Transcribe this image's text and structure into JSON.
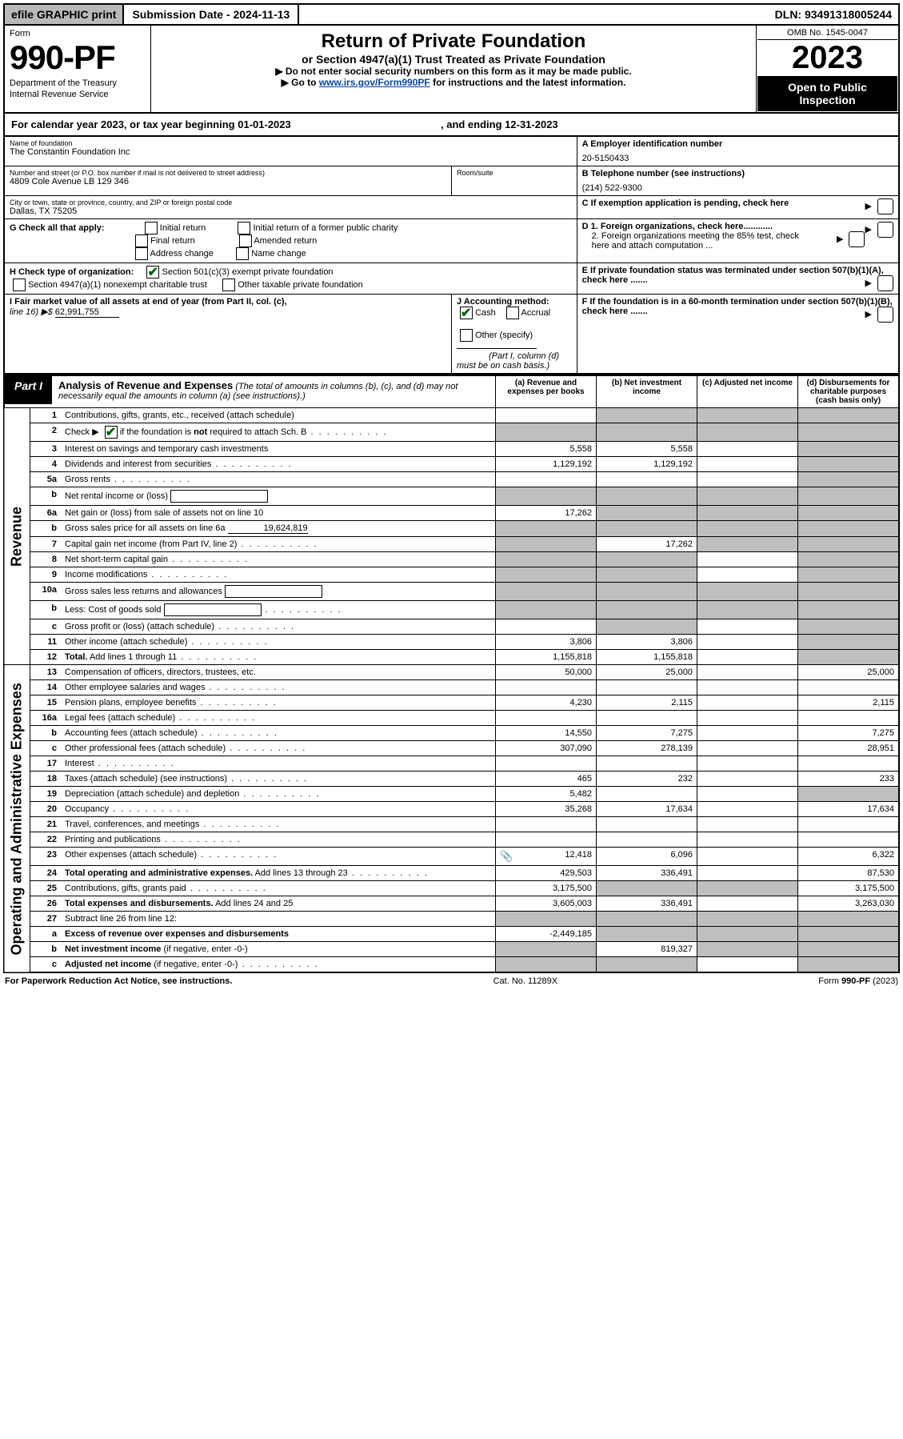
{
  "topbar": {
    "efile": "efile GRAPHIC print",
    "subdate": "Submission Date - 2024-11-13",
    "dln": "DLN: 93491318005244"
  },
  "head": {
    "form_word": "Form",
    "form_num": "990-PF",
    "dept": "Department of the Treasury",
    "irs": "Internal Revenue Service",
    "title": "Return of Private Foundation",
    "subtitle": "or Section 4947(a)(1) Trust Treated as Private Foundation",
    "instr1": "▶ Do not enter social security numbers on this form as it may be made public.",
    "instr2_pre": "▶ Go to ",
    "instr2_link": "www.irs.gov/Form990PF",
    "instr2_post": " for instructions and the latest information.",
    "omb": "OMB No. 1545-0047",
    "year": "2023",
    "open": "Open to Public Inspection"
  },
  "cal": {
    "label_pre": "For calendar year 2023, or tax year beginning ",
    "begin": "01-01-2023",
    "label_mid": " , and ending ",
    "end": "12-31-2023"
  },
  "info": {
    "name_label": "Name of foundation",
    "name": "The Constantin Foundation Inc",
    "addr_label": "Number and street (or P.O. box number if mail is not delivered to street address)",
    "addr": "4809 Cole Avenue LB 129 346",
    "room_label": "Room/suite",
    "city_label": "City or town, state or province, country, and ZIP or foreign postal code",
    "city": "Dallas, TX  75205",
    "a_label": "A Employer identification number",
    "a_val": "20-5150433",
    "b_label": "B Telephone number (see instructions)",
    "b_val": "(214) 522-9300",
    "c_label": "C If exemption application is pending, check here",
    "g_label": "G Check all that apply:",
    "g_opts": [
      "Initial return",
      "Initial return of a former public charity",
      "Final return",
      "Amended return",
      "Address change",
      "Name change"
    ],
    "d1": "D 1. Foreign organizations, check here............",
    "d2": "2. Foreign organizations meeting the 85% test, check here and attach computation ...",
    "h_label": "H Check type of organization:",
    "h1": "Section 501(c)(3) exempt private foundation",
    "h2": "Section 4947(a)(1) nonexempt charitable trust",
    "h3": "Other taxable private foundation",
    "e_label": "E  If private foundation status was terminated under section 507(b)(1)(A), check here .......",
    "i_label_1": "I Fair market value of all assets at end of year (from Part II, col. (c),",
    "i_label_2": "line 16) ▶$ ",
    "i_val": "62,991,755",
    "j_label": "J Accounting method:",
    "j_cash": "Cash",
    "j_accrual": "Accrual",
    "j_other": "Other (specify)",
    "j_note": "(Part I, column (d) must be on cash basis.)",
    "f_label": "F  If the foundation is in a 60-month termination under section 507(b)(1)(B), check here .......",
    "part1": "Part I",
    "analysis_title": "Analysis of Revenue and Expenses",
    "analysis_note": " (The total of amounts in columns (b), (c), and (d) may not necessarily equal the amounts in column (a) (see instructions).)",
    "col_a": "(a)  Revenue and expenses per books",
    "col_b": "(b)  Net investment income",
    "col_c": "(c)  Adjusted net income",
    "col_d": "(d)  Disbursements for charitable purposes (cash basis only)"
  },
  "sides": {
    "rev": "Revenue",
    "exp": "Operating and Administrative Expenses"
  },
  "rows": [
    {
      "n": "1",
      "desc": "Contributions, gifts, grants, etc., received (attach schedule)",
      "a": "",
      "b": "",
      "c": "",
      "d": "",
      "shade_b": true,
      "shade_c": true,
      "shade_d": true
    },
    {
      "n": "2",
      "desc": "Check ▶ ☑ if the foundation is <b>not</b> required to attach Sch. B",
      "a": "",
      "b": "",
      "c": "",
      "d": "",
      "dots": true,
      "shade_a": true,
      "shade_b": true,
      "shade_c": true,
      "shade_d": true,
      "has_check": true
    },
    {
      "n": "3",
      "desc": "Interest on savings and temporary cash investments",
      "a": "5,558",
      "b": "5,558",
      "c": "",
      "d": "",
      "shade_d": true
    },
    {
      "n": "4",
      "desc": "Dividends and interest from securities",
      "a": "1,129,192",
      "b": "1,129,192",
      "c": "",
      "d": "",
      "dots": true,
      "shade_d": true
    },
    {
      "n": "5a",
      "desc": "Gross rents",
      "a": "",
      "b": "",
      "c": "",
      "d": "",
      "dots": true,
      "shade_d": true
    },
    {
      "n": "b",
      "desc": "Net rental income or (loss)",
      "a": "",
      "b": "",
      "c": "",
      "d": "",
      "shade_a": true,
      "shade_b": true,
      "shade_c": true,
      "shade_d": true,
      "inline_box": true
    },
    {
      "n": "6a",
      "desc": "Net gain or (loss) from sale of assets not on line 10",
      "a": "17,262",
      "b": "",
      "c": "",
      "d": "",
      "shade_b": true,
      "shade_c": true,
      "shade_d": true
    },
    {
      "n": "b",
      "desc": "Gross sales price for all assets on line 6a",
      "a": "",
      "b": "",
      "c": "",
      "d": "",
      "shade_a": true,
      "shade_b": true,
      "shade_c": true,
      "shade_d": true,
      "inline_val": "19,624,819"
    },
    {
      "n": "7",
      "desc": "Capital gain net income (from Part IV, line 2)",
      "a": "",
      "b": "17,262",
      "c": "",
      "d": "",
      "dots": true,
      "shade_a": true,
      "shade_c": true,
      "shade_d": true
    },
    {
      "n": "8",
      "desc": "Net short-term capital gain",
      "a": "",
      "b": "",
      "c": "",
      "d": "",
      "dots": true,
      "shade_a": true,
      "shade_b": true,
      "shade_d": true
    },
    {
      "n": "9",
      "desc": "Income modifications",
      "a": "",
      "b": "",
      "c": "",
      "d": "",
      "dots": true,
      "shade_a": true,
      "shade_b": true,
      "shade_d": true
    },
    {
      "n": "10a",
      "desc": "Gross sales less returns and allowances",
      "a": "",
      "b": "",
      "c": "",
      "d": "",
      "shade_a": true,
      "shade_b": true,
      "shade_c": true,
      "shade_d": true,
      "inline_box": true
    },
    {
      "n": "b",
      "desc": "Less: Cost of goods sold",
      "a": "",
      "b": "",
      "c": "",
      "d": "",
      "dots": true,
      "shade_a": true,
      "shade_b": true,
      "shade_c": true,
      "shade_d": true,
      "inline_box": true
    },
    {
      "n": "c",
      "desc": "Gross profit or (loss) (attach schedule)",
      "a": "",
      "b": "",
      "c": "",
      "d": "",
      "dots": true,
      "shade_b": true,
      "shade_d": true
    },
    {
      "n": "11",
      "desc": "Other income (attach schedule)",
      "a": "3,806",
      "b": "3,806",
      "c": "",
      "d": "",
      "dots": true,
      "shade_d": true
    },
    {
      "n": "12",
      "desc": "<b>Total.</b> Add lines 1 through 11",
      "a": "1,155,818",
      "b": "1,155,818",
      "c": "",
      "d": "",
      "dots": true,
      "shade_d": true,
      "bold": true
    },
    {
      "n": "13",
      "desc": "Compensation of officers, directors, trustees, etc.",
      "a": "50,000",
      "b": "25,000",
      "c": "",
      "d": "25,000"
    },
    {
      "n": "14",
      "desc": "Other employee salaries and wages",
      "a": "",
      "b": "",
      "c": "",
      "d": "",
      "dots": true
    },
    {
      "n": "15",
      "desc": "Pension plans, employee benefits",
      "a": "4,230",
      "b": "2,115",
      "c": "",
      "d": "2,115",
      "dots": true
    },
    {
      "n": "16a",
      "desc": "Legal fees (attach schedule)",
      "a": "",
      "b": "",
      "c": "",
      "d": "",
      "dots": true
    },
    {
      "n": "b",
      "desc": "Accounting fees (attach schedule)",
      "a": "14,550",
      "b": "7,275",
      "c": "",
      "d": "7,275",
      "dots": true
    },
    {
      "n": "c",
      "desc": "Other professional fees (attach schedule)",
      "a": "307,090",
      "b": "278,139",
      "c": "",
      "d": "28,951",
      "dots": true
    },
    {
      "n": "17",
      "desc": "Interest",
      "a": "",
      "b": "",
      "c": "",
      "d": "",
      "dots": true
    },
    {
      "n": "18",
      "desc": "Taxes (attach schedule) (see instructions)",
      "a": "465",
      "b": "232",
      "c": "",
      "d": "233",
      "dots": true
    },
    {
      "n": "19",
      "desc": "Depreciation (attach schedule) and depletion",
      "a": "5,482",
      "b": "",
      "c": "",
      "d": "",
      "dots": true,
      "shade_d": true
    },
    {
      "n": "20",
      "desc": "Occupancy",
      "a": "35,268",
      "b": "17,634",
      "c": "",
      "d": "17,634",
      "dots": true
    },
    {
      "n": "21",
      "desc": "Travel, conferences, and meetings",
      "a": "",
      "b": "",
      "c": "",
      "d": "",
      "dots": true
    },
    {
      "n": "22",
      "desc": "Printing and publications",
      "a": "",
      "b": "",
      "c": "",
      "d": "",
      "dots": true
    },
    {
      "n": "23",
      "desc": "Other expenses (attach schedule)",
      "a": "12,418",
      "b": "6,096",
      "c": "",
      "d": "6,322",
      "dots": true,
      "attach": true
    },
    {
      "n": "24",
      "desc": "<b>Total operating and administrative expenses.</b> Add lines 13 through 23",
      "a": "429,503",
      "b": "336,491",
      "c": "",
      "d": "87,530",
      "dots": true
    },
    {
      "n": "25",
      "desc": "Contributions, gifts, grants paid",
      "a": "3,175,500",
      "b": "",
      "c": "",
      "d": "3,175,500",
      "dots": true,
      "shade_b": true,
      "shade_c": true
    },
    {
      "n": "26",
      "desc": "<b>Total expenses and disbursements.</b> Add lines 24 and 25",
      "a": "3,605,003",
      "b": "336,491",
      "c": "",
      "d": "3,263,030"
    },
    {
      "n": "27",
      "desc": "Subtract line 26 from line 12:",
      "a": "",
      "b": "",
      "c": "",
      "d": "",
      "shade_a": true,
      "shade_b": true,
      "shade_c": true,
      "shade_d": true
    },
    {
      "n": "a",
      "desc": "<b>Excess of revenue over expenses and disbursements</b>",
      "a": "-2,449,185",
      "b": "",
      "c": "",
      "d": "",
      "shade_b": true,
      "shade_c": true,
      "shade_d": true
    },
    {
      "n": "b",
      "desc": "<b>Net investment income</b> (if negative, enter -0-)",
      "a": "",
      "b": "819,327",
      "c": "",
      "d": "",
      "shade_a": true,
      "shade_c": true,
      "shade_d": true
    },
    {
      "n": "c",
      "desc": "<b>Adjusted net income</b> (if negative, enter -0-)",
      "a": "",
      "b": "",
      "c": "",
      "d": "",
      "dots": true,
      "shade_a": true,
      "shade_b": true,
      "shade_d": true
    }
  ],
  "footer": {
    "left": "For Paperwork Reduction Act Notice, see instructions.",
    "mid": "Cat. No. 11289X",
    "right": "Form 990-PF (2023)"
  }
}
